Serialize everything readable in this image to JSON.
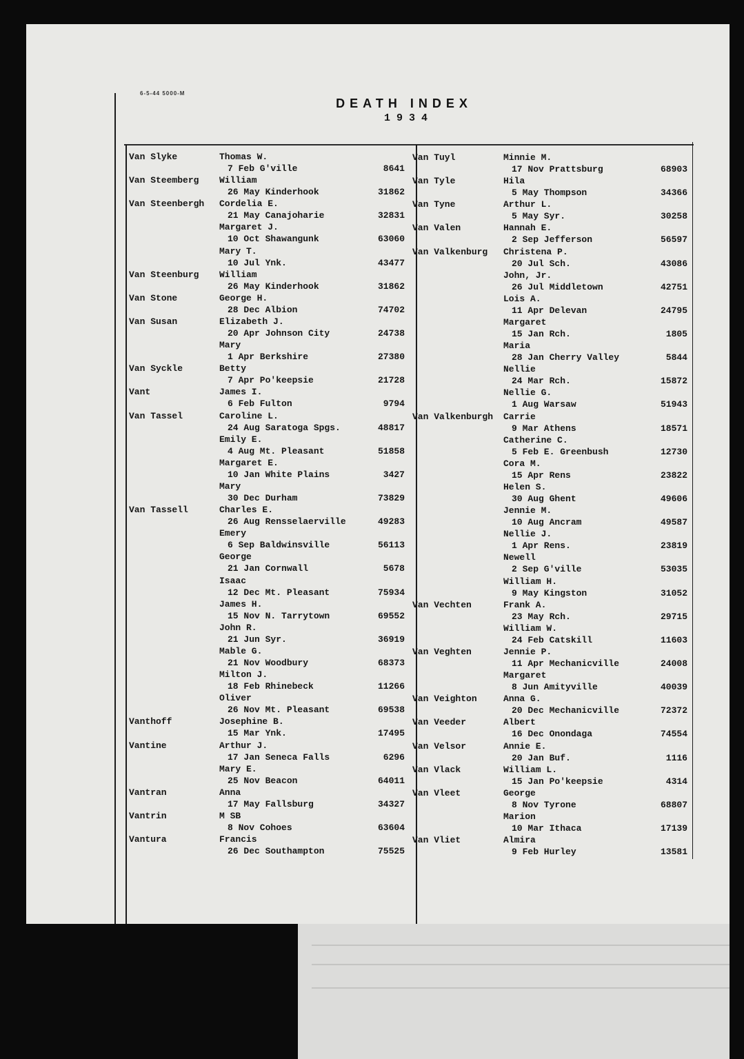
{
  "header": {
    "form_code": "6-5-44 5000-M",
    "title": "DEATH INDEX",
    "year": "1934"
  },
  "columns": [
    {
      "rows": [
        [
          "Van Slyke",
          "Thomas W.",
          ""
        ],
        [
          "",
          "7 Feb G'ville",
          "8641"
        ],
        [
          "Van Steemberg",
          "William",
          ""
        ],
        [
          "",
          "26 May Kinderhook",
          "31862"
        ],
        [
          "Van Steenbergh",
          "Cordelia E.",
          ""
        ],
        [
          "",
          "21 May Canajoharie",
          "32831"
        ],
        [
          "",
          "Margaret J.",
          ""
        ],
        [
          "",
          "10 Oct Shawangunk",
          "63060"
        ],
        [
          "",
          "Mary T.",
          ""
        ],
        [
          "",
          "10 Jul Ynk.",
          "43477"
        ],
        [
          "Van Steenburg",
          "William",
          ""
        ],
        [
          "",
          "26 May Kinderhook",
          "31862"
        ],
        [
          "Van Stone",
          "George H.",
          ""
        ],
        [
          "",
          "28 Dec Albion",
          "74702"
        ],
        [
          "Van Susan",
          "Elizabeth J.",
          ""
        ],
        [
          "",
          "20 Apr Johnson City",
          "24738"
        ],
        [
          "",
          "Mary",
          ""
        ],
        [
          "",
          "1 Apr Berkshire",
          "27380"
        ],
        [
          "Van Syckle",
          "Betty",
          ""
        ],
        [
          "",
          "7 Apr Po'keepsie",
          "21728"
        ],
        [
          "Vant",
          "James I.",
          ""
        ],
        [
          "",
          "6 Feb Fulton",
          "9794"
        ],
        [
          "Van Tassel",
          "Caroline L.",
          ""
        ],
        [
          "",
          "24 Aug Saratoga Spgs.",
          "48817"
        ],
        [
          "",
          "Emily E.",
          ""
        ],
        [
          "",
          "4 Aug Mt. Pleasant",
          "51858"
        ],
        [
          "",
          "Margaret E.",
          ""
        ],
        [
          "",
          "10 Jan White Plains",
          "3427"
        ],
        [
          "",
          "Mary",
          ""
        ],
        [
          "",
          "30 Dec Durham",
          "73829"
        ],
        [
          "Van Tassell",
          "Charles E.",
          ""
        ],
        [
          "",
          "26 Aug Rensselaerville",
          "49283"
        ],
        [
          "",
          "Emery",
          ""
        ],
        [
          "",
          "6 Sep Baldwinsville",
          "56113"
        ],
        [
          "",
          "George",
          ""
        ],
        [
          "",
          "21 Jan Cornwall",
          "5678"
        ],
        [
          "",
          "Isaac",
          ""
        ],
        [
          "",
          "12 Dec Mt. Pleasant",
          "75934"
        ],
        [
          "",
          "James H.",
          ""
        ],
        [
          "",
          "15 Nov N. Tarrytown",
          "69552"
        ],
        [
          "",
          "John R.",
          ""
        ],
        [
          "",
          "21 Jun Syr.",
          "36919"
        ],
        [
          "",
          "Mable G.",
          ""
        ],
        [
          "",
          "21 Nov Woodbury",
          "68373"
        ],
        [
          "",
          "Milton J.",
          ""
        ],
        [
          "",
          "18 Feb Rhinebeck",
          "11266"
        ],
        [
          "",
          "Oliver",
          ""
        ],
        [
          "",
          "26 Nov Mt. Pleasant",
          "69538"
        ],
        [
          "Vanthoff",
          "Josephine B.",
          ""
        ],
        [
          "",
          "15 Mar Ynk.",
          "17495"
        ],
        [
          "Vantine",
          "Arthur J.",
          ""
        ],
        [
          "",
          "17 Jan Seneca Falls",
          "6296"
        ],
        [
          "",
          "Mary E.",
          ""
        ],
        [
          "",
          "25 Nov Beacon",
          "64011"
        ],
        [
          "Vantran",
          "Anna",
          ""
        ],
        [
          "",
          "17 May Fallsburg",
          "34327"
        ],
        [
          "Vantrin",
          "M SB",
          ""
        ],
        [
          "",
          "8 Nov Cohoes",
          "63604"
        ],
        [
          "Vantura",
          "Francis",
          ""
        ],
        [
          "",
          "26 Dec Southampton",
          "75525"
        ]
      ]
    },
    {
      "rows": [
        [
          "Van Tuyl",
          "Minnie M.",
          ""
        ],
        [
          "",
          "17 Nov Prattsburg",
          "68903"
        ],
        [
          "Van Tyle",
          "Hila",
          ""
        ],
        [
          "",
          "5 May Thompson",
          "34366"
        ],
        [
          "Van Tyne",
          "Arthur L.",
          ""
        ],
        [
          "",
          "5 May Syr.",
          "30258"
        ],
        [
          "Van Valen",
          "Hannah E.",
          ""
        ],
        [
          "",
          "2 Sep Jefferson",
          "56597"
        ],
        [
          "Van Valkenburg",
          "Christena P.",
          ""
        ],
        [
          "",
          "20 Jul Sch.",
          "43086"
        ],
        [
          "",
          "John, Jr.",
          ""
        ],
        [
          "",
          "26 Jul Middletown",
          "42751"
        ],
        [
          "",
          "Lois A.",
          ""
        ],
        [
          "",
          "11 Apr Delevan",
          "24795"
        ],
        [
          "",
          "Margaret",
          ""
        ],
        [
          "",
          "15 Jan Rch.",
          "1805"
        ],
        [
          "",
          "Maria",
          ""
        ],
        [
          "",
          "28 Jan Cherry Valley",
          "5844"
        ],
        [
          "",
          "Nellie",
          ""
        ],
        [
          "",
          "24 Mar Rch.",
          "15872"
        ],
        [
          "",
          "Nellie G.",
          ""
        ],
        [
          "",
          "1 Aug Warsaw",
          "51943"
        ],
        [
          "Van Valkenburgh",
          "Carrie",
          ""
        ],
        [
          "",
          "9 Mar Athens",
          "18571"
        ],
        [
          "",
          "Catherine C.",
          ""
        ],
        [
          "",
          "5 Feb E. Greenbush",
          "12730"
        ],
        [
          "",
          "Cora M.",
          ""
        ],
        [
          "",
          "15 Apr Rens",
          "23822"
        ],
        [
          "",
          "Helen S.",
          ""
        ],
        [
          "",
          "30 Aug Ghent",
          "49606"
        ],
        [
          "",
          "Jennie M.",
          ""
        ],
        [
          "",
          "10 Aug Ancram",
          "49587"
        ],
        [
          "",
          "Nellie J.",
          ""
        ],
        [
          "",
          "1 Apr Rens.",
          "23819"
        ],
        [
          "",
          "Newell",
          ""
        ],
        [
          "",
          "2 Sep G'ville",
          "53035"
        ],
        [
          "",
          "William H.",
          ""
        ],
        [
          "",
          "9 May Kingston",
          "31052"
        ],
        [
          "Van Vechten",
          "Frank A.",
          ""
        ],
        [
          "",
          "23 May Rch.",
          "29715"
        ],
        [
          "",
          "William W.",
          ""
        ],
        [
          "",
          "24 Feb Catskill",
          "11603"
        ],
        [
          "Van Veghten",
          "Jennie P.",
          ""
        ],
        [
          "",
          "11 Apr Mechanicville",
          "24008"
        ],
        [
          "",
          "Margaret",
          ""
        ],
        [
          "",
          "8 Jun Amityville",
          "40039"
        ],
        [
          "Van Veighton",
          "Anna G.",
          ""
        ],
        [
          "",
          "20 Dec Mechanicville",
          "72372"
        ],
        [
          "Van Veeder",
          "Albert",
          ""
        ],
        [
          "",
          "16 Dec Onondaga",
          "74554"
        ],
        [
          "Van Velsor",
          "Annie E.",
          ""
        ],
        [
          "",
          "20 Jan Buf.",
          "1116"
        ],
        [
          "Van Vlack",
          "William L.",
          ""
        ],
        [
          "",
          "15 Jan Po'keepsie",
          "4314"
        ],
        [
          "Van Vleet",
          "George",
          ""
        ],
        [
          "",
          "8 Nov Tyrone",
          "68807"
        ],
        [
          "",
          "Marion",
          ""
        ],
        [
          "",
          "10 Mar Ithaca",
          "17139"
        ],
        [
          "Van Vliet",
          "Almira",
          ""
        ],
        [
          "",
          "9 Feb Hurley",
          "13581"
        ]
      ]
    }
  ]
}
